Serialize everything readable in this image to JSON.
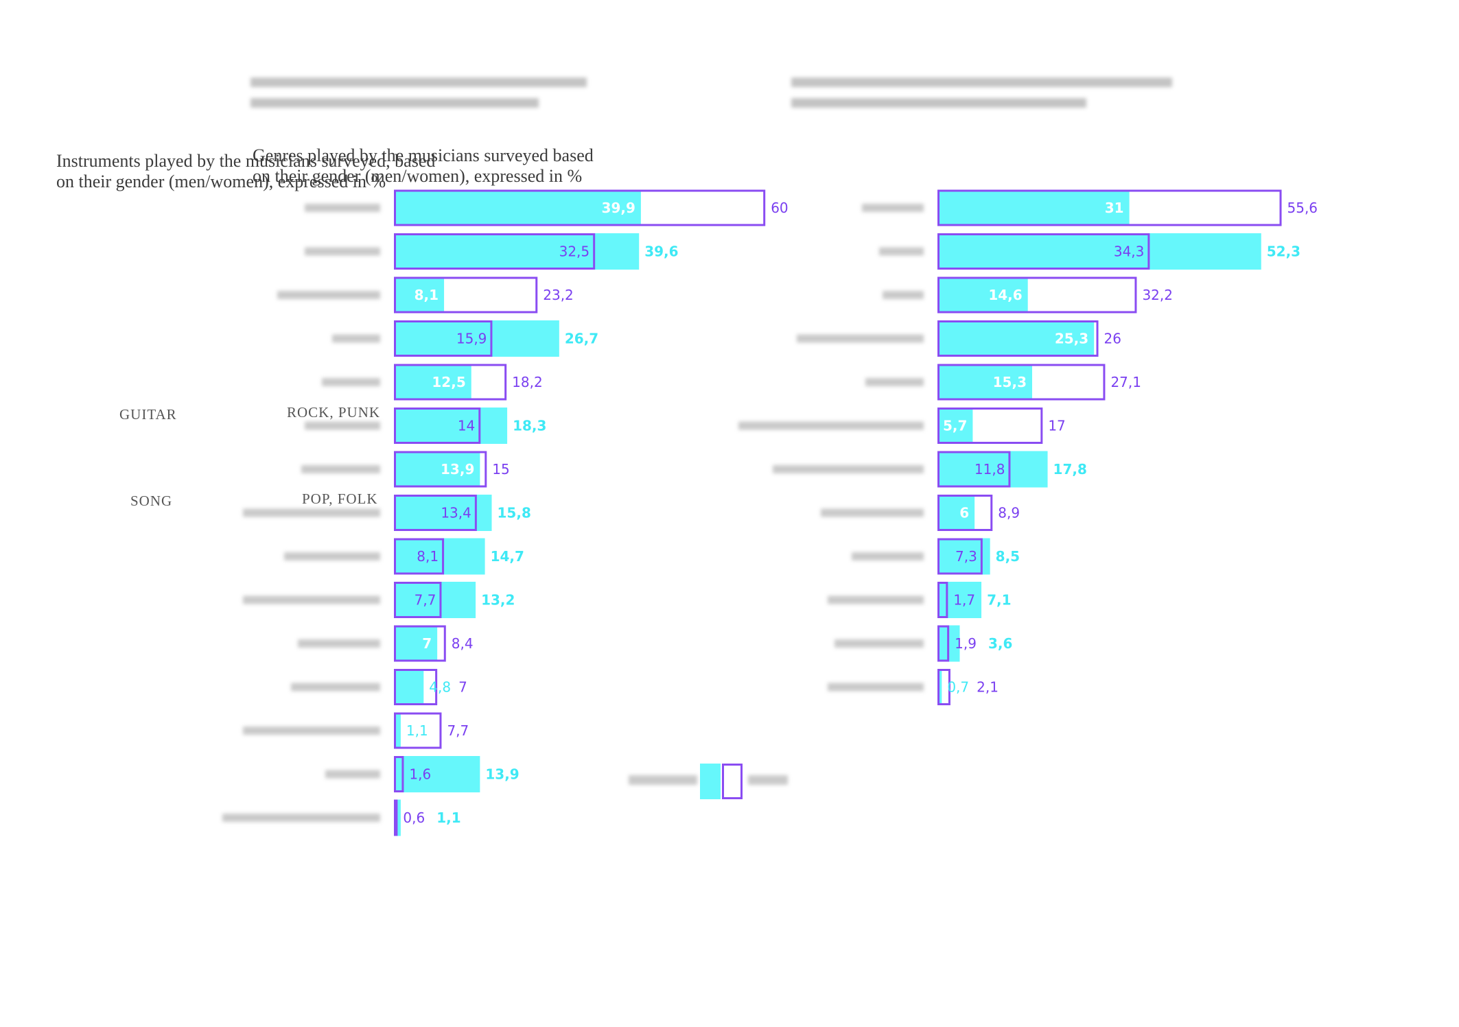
{
  "colors": {
    "women": "#66f7fb",
    "men": "#8a4cf2",
    "women_text": "#ffffff",
    "men_value": "#7a3ff0",
    "women_value": "#3fe9f5",
    "category_label": "#9a9a9a"
  },
  "left_overlay_title": "Instruments played by the musicians surveyed, based on their gender (men/women), expressed in %",
  "middle_overlay_title": "Genres played by the musicians surveyed based on their gender (men/women), expressed in %",
  "ghost_labels": {
    "guitar": "GUITAR",
    "song": "SONG",
    "rock_punk": "ROCK, PUNK",
    "pop_folk": "POP, FOLK"
  },
  "legend": {
    "women": "WOMEN",
    "men": "MEN"
  },
  "chart_data": [
    {
      "type": "bar",
      "title": "Genres played by the musicians surveyed based on their gender (men/women), expressed in %",
      "categories": [
        "",
        "",
        "",
        "",
        "",
        "",
        "",
        "",
        "",
        "",
        "",
        "",
        "",
        "",
        ""
      ],
      "series": [
        {
          "name": "WOMEN",
          "values": [
            39.9,
            39.6,
            8.1,
            26.7,
            12.5,
            18.3,
            13.9,
            15.8,
            14.7,
            13.2,
            7,
            4.8,
            1.1,
            13.9,
            1.1
          ]
        },
        {
          "name": "MEN",
          "values": [
            60,
            32.5,
            23.2,
            15.9,
            18.2,
            14,
            15,
            13.4,
            8.1,
            7.7,
            8.4,
            7,
            7.7,
            1.6,
            0.6
          ]
        }
      ],
      "labels": {
        "women": [
          "39,9",
          "39,6",
          "8,1",
          "26,7",
          "12,5",
          "18,3",
          "13,9",
          "15,8",
          "14,7",
          "13,2",
          "7",
          "4,8",
          "1,1",
          "13,9",
          "1,1"
        ],
        "men": [
          "60",
          "32,5",
          "23,2",
          "15,9",
          "18,2",
          "14",
          "15",
          "13,4",
          "8,1",
          "7,7",
          "8,4",
          "7",
          "7,7",
          "1,6",
          "0,6"
        ]
      }
    },
    {
      "type": "bar",
      "title": "Instruments played by the musicians surveyed, based on their gender (men/women), expressed in %",
      "categories": [
        "",
        "",
        "",
        "",
        "",
        "",
        "",
        "",
        "",
        "",
        "",
        ""
      ],
      "series": [
        {
          "name": "WOMEN",
          "values": [
            31,
            52.3,
            14.6,
            25.3,
            15.3,
            5.7,
            17.8,
            6,
            8.5,
            7.1,
            3.6,
            0.7
          ]
        },
        {
          "name": "MEN",
          "values": [
            55.6,
            34.3,
            32.2,
            26,
            27.1,
            17,
            11.8,
            8.9,
            7.3,
            1.7,
            1.9,
            2.1
          ]
        }
      ],
      "labels": {
        "women": [
          "31",
          "52,3",
          "14,6",
          "25,3",
          "15,3",
          "5,7",
          "17,8",
          "6",
          "8,5",
          "7,1",
          "3,6",
          "0,7"
        ],
        "men": [
          "55,6",
          "34,3",
          "32,2",
          "26",
          "27,1",
          "17",
          "11,8",
          "8,9",
          "7,3",
          "1,7",
          "1,9",
          "2,1"
        ]
      }
    }
  ]
}
